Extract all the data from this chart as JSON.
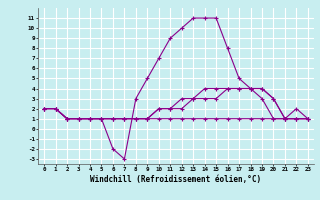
{
  "x": [
    0,
    1,
    2,
    3,
    4,
    5,
    6,
    7,
    8,
    9,
    10,
    11,
    12,
    13,
    14,
    15,
    16,
    17,
    18,
    19,
    20,
    21,
    22,
    23
  ],
  "series1": [
    2,
    2,
    1,
    1,
    1,
    1,
    -2,
    -3,
    3,
    5,
    7,
    9,
    10,
    11,
    11,
    11,
    8,
    5,
    4,
    3,
    1,
    1,
    2,
    1
  ],
  "series2": [
    2,
    2,
    1,
    1,
    1,
    1,
    1,
    1,
    1,
    1,
    2,
    2,
    3,
    3,
    4,
    4,
    4,
    4,
    4,
    4,
    3,
    1,
    1,
    1
  ],
  "series3": [
    2,
    2,
    1,
    1,
    1,
    1,
    1,
    1,
    1,
    1,
    2,
    2,
    2,
    3,
    3,
    3,
    4,
    4,
    4,
    4,
    3,
    1,
    1,
    1
  ],
  "series4": [
    2,
    2,
    1,
    1,
    1,
    1,
    1,
    1,
    1,
    1,
    1,
    1,
    1,
    1,
    1,
    1,
    1,
    1,
    1,
    1,
    1,
    1,
    1,
    1
  ],
  "line_color": "#8B008B",
  "bg_color": "#c8eef0",
  "grid_color": "#ffffff",
  "xlabel": "Windchill (Refroidissement éolien,°C)",
  "yticks": [
    -3,
    -2,
    -1,
    0,
    1,
    2,
    3,
    4,
    5,
    6,
    7,
    8,
    9,
    10,
    11
  ],
  "xticks": [
    0,
    1,
    2,
    3,
    4,
    5,
    6,
    7,
    8,
    9,
    10,
    11,
    12,
    13,
    14,
    15,
    16,
    17,
    18,
    19,
    20,
    21,
    22,
    23
  ],
  "ylim": [
    -3.5,
    12
  ],
  "xlim": [
    -0.5,
    23.5
  ]
}
